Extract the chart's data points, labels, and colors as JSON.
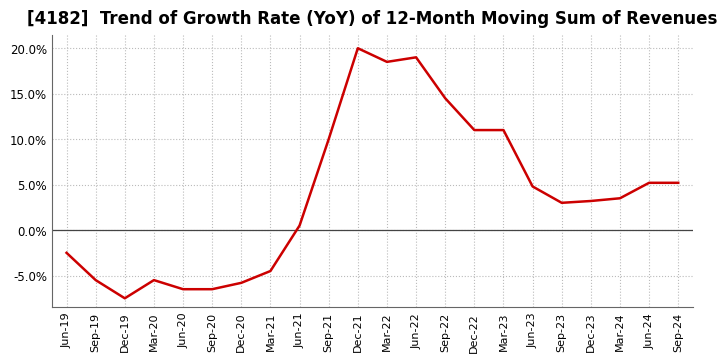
{
  "title": "[4182]  Trend of Growth Rate (YoY) of 12-Month Moving Sum of Revenues",
  "x_labels": [
    "Jun-19",
    "Sep-19",
    "Dec-19",
    "Mar-20",
    "Jun-20",
    "Sep-20",
    "Dec-20",
    "Mar-21",
    "Jun-21",
    "Sep-21",
    "Dec-21",
    "Mar-22",
    "Jun-22",
    "Sep-22",
    "Dec-22",
    "Mar-23",
    "Jun-23",
    "Sep-23",
    "Dec-23",
    "Mar-24",
    "Jun-24",
    "Sep-24"
  ],
  "y_values": [
    -2.5,
    -5.5,
    -7.5,
    -5.5,
    -6.5,
    -6.5,
    -5.8,
    -4.5,
    0.5,
    10.0,
    20.0,
    18.5,
    19.0,
    14.5,
    11.0,
    11.0,
    4.8,
    3.0,
    3.2,
    3.5,
    5.2,
    5.2
  ],
  "line_color": "#cc0000",
  "background_color": "#ffffff",
  "plot_bg_color": "#ffffff",
  "grid_color": "#bbbbbb",
  "zero_line_color": "#444444",
  "ylim": [
    -8.5,
    21.5
  ],
  "yticks": [
    -5.0,
    0.0,
    5.0,
    10.0,
    15.0,
    20.0
  ],
  "title_fontsize": 12,
  "tick_fontsize": 8,
  "line_width": 1.8
}
